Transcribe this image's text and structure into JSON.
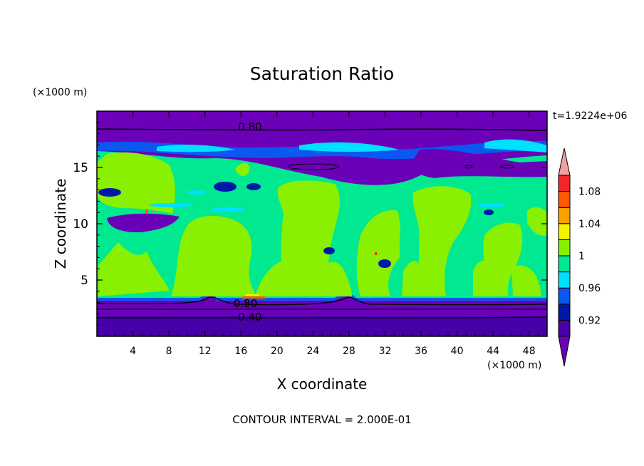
{
  "chart_data": {
    "type": "heatmap",
    "title": "Saturation Ratio",
    "xlabel": "X coordinate",
    "ylabel": "Z coordinate",
    "x_unit": "(×1000 m)",
    "y_unit": "(×1000 m)",
    "time_label": "t=1.9224e+06",
    "footer": "CONTOUR INTERVAL = 2.000E-01",
    "xlim": [
      0,
      50
    ],
    "ylim": [
      0,
      20
    ],
    "x_ticks": [
      "4",
      "8",
      "12",
      "16",
      "20",
      "24",
      "28",
      "32",
      "36",
      "40",
      "44",
      "48"
    ],
    "x_tick_values": [
      4,
      8,
      12,
      16,
      20,
      24,
      28,
      32,
      36,
      40,
      44,
      48
    ],
    "y_ticks": [
      "5",
      "10",
      "15"
    ],
    "y_tick_values": [
      5,
      10,
      15
    ],
    "contour_labels": [
      {
        "text": "0.80",
        "x": 17,
        "y": 18.6
      },
      {
        "text": "0.80",
        "x": 16.5,
        "y": 2.9
      },
      {
        "text": "0.40",
        "x": 17,
        "y": 1.7
      }
    ],
    "colorbar": {
      "levels": [
        0.92,
        0.94,
        0.96,
        0.98,
        1.0,
        1.02,
        1.04,
        1.06,
        1.08
      ],
      "labels": [
        "0.92",
        "0.96",
        "1",
        "1.04",
        "1.08"
      ],
      "colors": {
        "below": "#6a00b8",
        "b0": "#4800a8",
        "b1": "#0018a8",
        "b2": "#0a58f0",
        "b3": "#00e0ff",
        "b4": "#00e890",
        "b5": "#88f000",
        "b6": "#f4f400",
        "b7": "#ffa000",
        "b8": "#ff5a00",
        "b9": "#f02828",
        "above": "#f4a0a0"
      }
    }
  }
}
